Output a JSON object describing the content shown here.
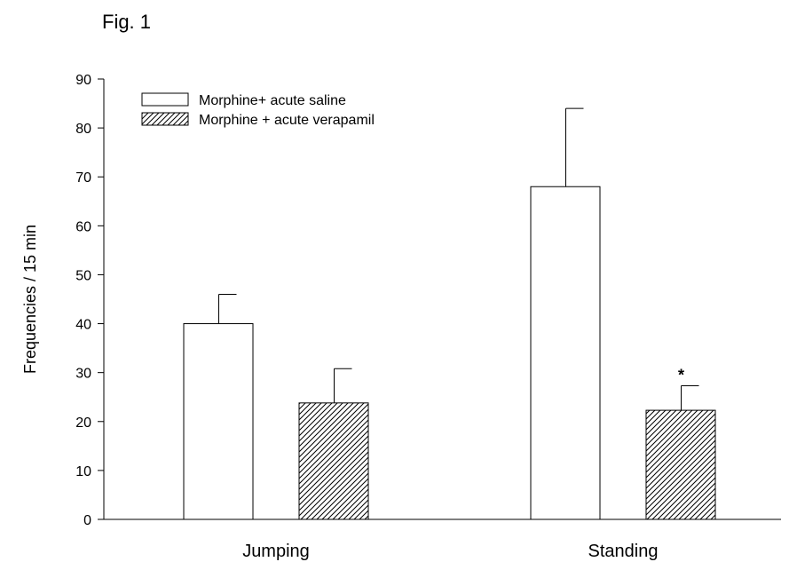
{
  "figure_label": "Fig. 1",
  "chart_data": {
    "type": "bar",
    "title": "",
    "xlabel": "",
    "ylabel": "Frequencies / 15 min",
    "ylim": [
      0,
      90
    ],
    "yticks": [
      0,
      10,
      20,
      30,
      40,
      50,
      60,
      70,
      80,
      90
    ],
    "categories": [
      "Jumping",
      "Standing"
    ],
    "series": [
      {
        "name": "Morphine+ acute saline",
        "values": [
          40,
          68
        ],
        "error": [
          6,
          16
        ],
        "fill": "open"
      },
      {
        "name": "Morphine + acute verapamil",
        "values": [
          23.8,
          22.3
        ],
        "error": [
          7,
          5
        ],
        "fill": "hatched"
      }
    ],
    "annotations": [
      {
        "category": "Standing",
        "series": 1,
        "text": "*"
      }
    ],
    "legend_position": "top-left",
    "grid": false,
    "colors": {
      "bar_stroke": "#000000",
      "bar_fill": "#ffffff",
      "hatch": "#000000"
    }
  }
}
